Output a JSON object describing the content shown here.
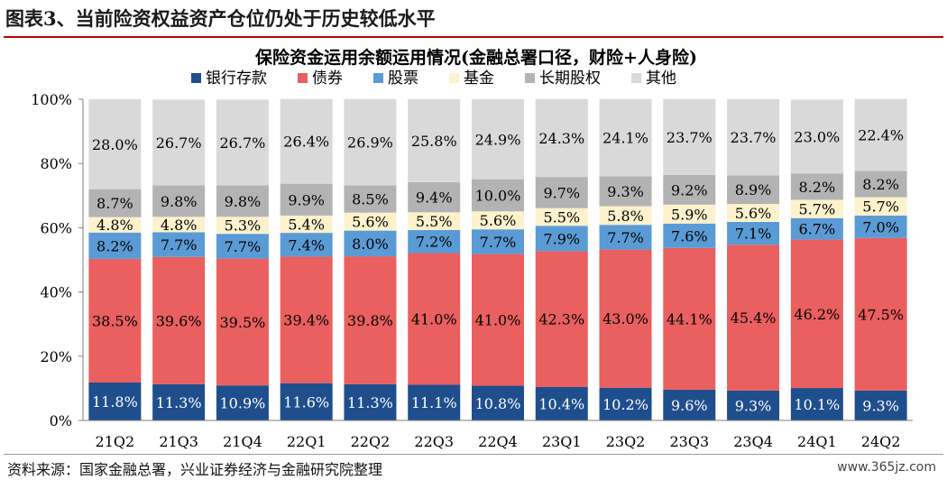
{
  "figure_title": "图表3、当前险资权益资产仓位仍处于历史较低水平",
  "source": "资料来源：国家金融总署，兴业证券经济与金融研究院整理",
  "watermark": "www.365jz.com",
  "chart_data": {
    "type": "bar",
    "stacked": true,
    "title": "保险资金运用余额运用情况(金融总署口径，财险+人身险)",
    "xlabel": "",
    "ylabel": "",
    "ylim": [
      0,
      100
    ],
    "y_ticks": [
      "0%",
      "20%",
      "40%",
      "60%",
      "80%",
      "100%"
    ],
    "legend_position": "top",
    "categories": [
      "21Q2",
      "21Q3",
      "21Q4",
      "22Q1",
      "22Q2",
      "22Q3",
      "22Q4",
      "23Q1",
      "23Q2",
      "23Q3",
      "23Q4",
      "24Q1",
      "24Q2"
    ],
    "series": [
      {
        "name": "银行存款",
        "color": "#1f4e8c",
        "values": [
          11.8,
          11.3,
          10.9,
          11.6,
          11.3,
          11.1,
          10.8,
          10.4,
          10.2,
          9.6,
          9.3,
          10.1,
          9.3
        ]
      },
      {
        "name": "债券",
        "color": "#ea5f5f",
        "values": [
          38.5,
          39.6,
          39.5,
          39.4,
          39.8,
          41.0,
          41.0,
          42.3,
          43.0,
          44.1,
          45.4,
          46.2,
          47.5
        ]
      },
      {
        "name": "股票",
        "color": "#5b9bd5",
        "values": [
          8.2,
          7.7,
          7.7,
          7.4,
          8.0,
          7.2,
          7.7,
          7.9,
          7.7,
          7.6,
          7.1,
          6.7,
          7.0
        ]
      },
      {
        "name": "基金",
        "color": "#fdf2cc",
        "values": [
          4.8,
          4.8,
          5.3,
          5.4,
          5.6,
          5.5,
          5.6,
          5.5,
          5.8,
          5.9,
          5.6,
          5.7,
          5.7
        ]
      },
      {
        "name": "长期股权",
        "color": "#b3b3b3",
        "values": [
          8.7,
          9.8,
          9.8,
          9.9,
          8.5,
          9.4,
          10.0,
          9.7,
          9.3,
          9.2,
          8.9,
          8.2,
          8.2
        ]
      },
      {
        "name": "其他",
        "color": "#d9d9d9",
        "values": [
          28.0,
          26.7,
          26.7,
          26.4,
          26.9,
          25.8,
          24.9,
          24.3,
          24.1,
          23.7,
          23.7,
          23.0,
          22.4
        ]
      }
    ]
  }
}
